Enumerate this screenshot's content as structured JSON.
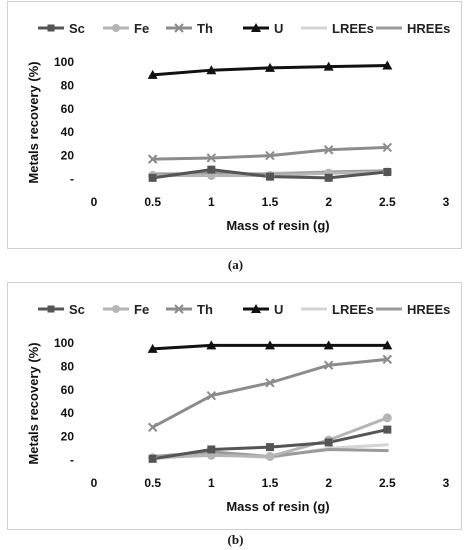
{
  "figure": {
    "captions": [
      "(a)",
      "(b)"
    ]
  },
  "chart_data": [
    {
      "type": "line",
      "panel": "a",
      "xlabel": "Mass of resin (g)",
      "ylabel": "Metals recovery (%)",
      "xlim": [
        0,
        3
      ],
      "ylim": [
        0,
        100
      ],
      "x_ticks": [
        "0",
        "0.5",
        "1",
        "1.5",
        "2",
        "2.5",
        "3"
      ],
      "y_ticks": [
        "-",
        "20",
        "40",
        "60",
        "80",
        "100"
      ],
      "grid": false,
      "legend": "top",
      "x": [
        0.5,
        1,
        1.5,
        2,
        2.5
      ],
      "series": [
        {
          "name": "Sc",
          "values": [
            1,
            8,
            2,
            1,
            6
          ],
          "color": "#555555",
          "marker": "square"
        },
        {
          "name": "Fe",
          "values": [
            3,
            3,
            3,
            5,
            6
          ],
          "color": "#b5b5b5",
          "marker": "circle"
        },
        {
          "name": "Th",
          "values": [
            17,
            18,
            20,
            25,
            27
          ],
          "color": "#8c8c8c",
          "marker": "x"
        },
        {
          "name": "U",
          "values": [
            89,
            93,
            95,
            96,
            97
          ],
          "color": "#111111",
          "marker": "triangle"
        },
        {
          "name": "LREEs",
          "values": [
            5,
            3,
            5,
            6,
            7
          ],
          "color": "#d4d4d4",
          "marker": "none"
        },
        {
          "name": "HREEs",
          "values": [
            4,
            5,
            4,
            6,
            7
          ],
          "color": "#9a9a9a",
          "marker": "none"
        }
      ]
    },
    {
      "type": "line",
      "panel": "b",
      "xlabel": "Mass of resin (g)",
      "ylabel": "Metals recovery (%)",
      "xlim": [
        0,
        3
      ],
      "ylim": [
        0,
        100
      ],
      "x_ticks": [
        "0",
        "0.5",
        "1",
        "1.5",
        "2",
        "2.5",
        "3"
      ],
      "y_ticks": [
        "-",
        "20",
        "40",
        "60",
        "80",
        "100"
      ],
      "grid": false,
      "legend": "top",
      "x": [
        0.5,
        1,
        1.5,
        2,
        2.5
      ],
      "series": [
        {
          "name": "Sc",
          "values": [
            1,
            9,
            11,
            15,
            26
          ],
          "color": "#555555",
          "marker": "square"
        },
        {
          "name": "Fe",
          "values": [
            2,
            4,
            3,
            17,
            36
          ],
          "color": "#b5b5b5",
          "marker": "circle"
        },
        {
          "name": "Th",
          "values": [
            28,
            55,
            66,
            81,
            86
          ],
          "color": "#8c8c8c",
          "marker": "x"
        },
        {
          "name": "U",
          "values": [
            95,
            98,
            98,
            98,
            98
          ],
          "color": "#111111",
          "marker": "triangle"
        },
        {
          "name": "LREEs",
          "values": [
            1,
            5,
            2,
            10,
            13
          ],
          "color": "#d4d4d4",
          "marker": "none"
        },
        {
          "name": "HREEs",
          "values": [
            3,
            7,
            3,
            9,
            8
          ],
          "color": "#9a9a9a",
          "marker": "none"
        }
      ]
    }
  ]
}
